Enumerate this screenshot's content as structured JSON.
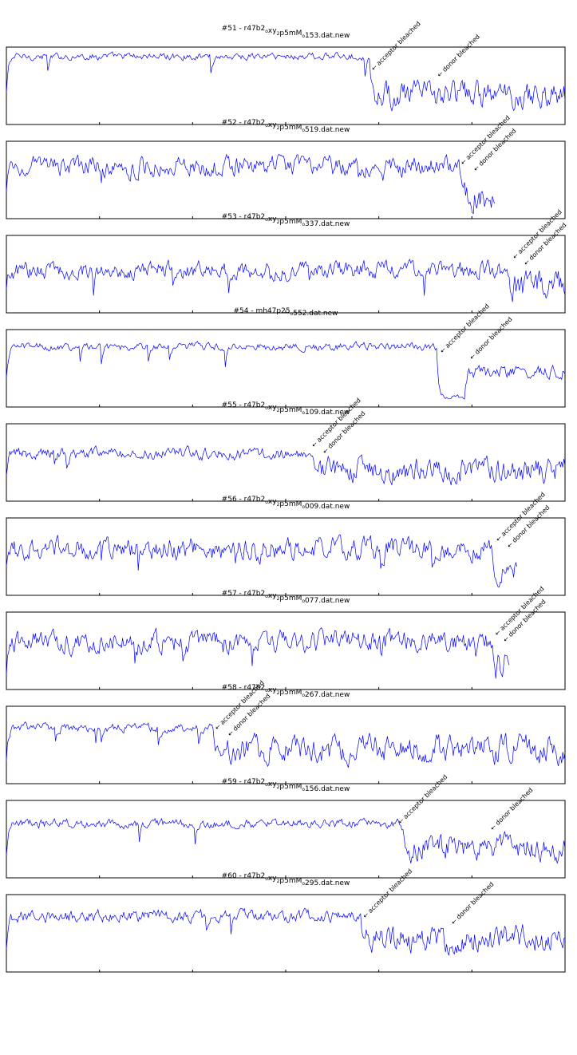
{
  "chart_data": [
    {
      "type": "line",
      "title": "#51 - r47b2_o_xy_2_p5mM_o_153.dat.new",
      "title_parts": [
        [
          "#51 - r47b2",
          ""
        ],
        [
          "o",
          "sub"
        ],
        [
          "xy",
          ""
        ],
        [
          "2",
          "sub"
        ],
        [
          "p5mM",
          ""
        ],
        [
          "o",
          "sub"
        ],
        [
          "153.dat.new",
          ""
        ]
      ],
      "length": 1000,
      "segments": [
        {
          "x_end": 650,
          "mean": 0.88,
          "noise": 0.08,
          "dips": 9
        },
        {
          "x_end": 1000,
          "mean": 0.38,
          "noise": 0.3,
          "dips": 0
        }
      ],
      "annotations": [
        {
          "text": "← acceptor bleached",
          "x": 652
        },
        {
          "text": "← donor bleached",
          "x": 770
        }
      ],
      "color": "#0000ff"
    },
    {
      "type": "line",
      "title": "#52 - r47b2_o_xy_2_p5mM_o_519.dat.new",
      "title_parts": [
        [
          "#52 - r47b2",
          ""
        ],
        [
          "o",
          "sub"
        ],
        [
          "xy",
          ""
        ],
        [
          "2",
          "sub"
        ],
        [
          "p5mM",
          ""
        ],
        [
          "o",
          "sub"
        ],
        [
          "519.dat.new",
          ""
        ]
      ],
      "length": 1000,
      "segments": [
        {
          "x_end": 810,
          "mean": 0.68,
          "noise": 0.22,
          "dips": 6
        },
        {
          "x_end": 875,
          "mean": 0.32,
          "noise": 0.35,
          "dips": 0
        }
      ],
      "annotations": [
        {
          "text": "← acceptor bleached",
          "x": 812
        },
        {
          "text": "← donor bleached",
          "x": 835
        }
      ],
      "color": "#0000ff"
    },
    {
      "type": "line",
      "title": "#53 - r47b2_o_xy_2_p5mM_o_337.dat.new",
      "title_parts": [
        [
          "#53 - r47b2",
          ""
        ],
        [
          "o",
          "sub"
        ],
        [
          "xy",
          ""
        ],
        [
          "2",
          "sub"
        ],
        [
          "p5mM",
          ""
        ],
        [
          "o",
          "sub"
        ],
        [
          "337.dat.new",
          ""
        ]
      ],
      "length": 1000,
      "segments": [
        {
          "x_end": 900,
          "mean": 0.55,
          "noise": 0.2,
          "dips": 8
        },
        {
          "x_end": 1000,
          "mean": 0.35,
          "noise": 0.35,
          "dips": 0
        }
      ],
      "annotations": [
        {
          "text": "← acceptor bleached",
          "x": 905
        },
        {
          "text": "← donor bleached",
          "x": 925
        }
      ],
      "color": "#0000ff"
    },
    {
      "type": "line",
      "title": "#54 - mh47_p25_o_552.dat.new",
      "title_parts": [
        [
          "#54 - mh47",
          ""
        ],
        [
          "p25",
          ""
        ],
        [
          "o",
          "sub"
        ],
        [
          "552.dat.new",
          ""
        ]
      ],
      "length": 1000,
      "segments": [
        {
          "x_end": 770,
          "mean": 0.78,
          "noise": 0.09,
          "dips": 4
        },
        {
          "x_end": 820,
          "mean": 0.12,
          "noise": 0.05,
          "dips": 0
        },
        {
          "x_end": 1000,
          "mean": 0.45,
          "noise": 0.15,
          "dips": 0
        }
      ],
      "annotations": [
        {
          "text": "← acceptor bleached",
          "x": 775
        },
        {
          "text": "← donor bleached",
          "x": 828
        }
      ],
      "color": "#0000ff"
    },
    {
      "type": "line",
      "title": "#55 - r47b2_o_xy_2_p5mM_o_109.dat.new",
      "title_parts": [
        [
          "#55 - r47b2",
          ""
        ],
        [
          "o",
          "sub"
        ],
        [
          "xy",
          ""
        ],
        [
          "2",
          "sub"
        ],
        [
          "p5mM",
          ""
        ],
        [
          "o",
          "sub"
        ],
        [
          "109.dat.new",
          ""
        ]
      ],
      "length": 1000,
      "segments": [
        {
          "x_end": 545,
          "mean": 0.62,
          "noise": 0.14,
          "dips": 3
        },
        {
          "x_end": 1000,
          "mean": 0.4,
          "noise": 0.28,
          "dips": 0
        }
      ],
      "annotations": [
        {
          "text": "← acceptor bleached",
          "x": 545
        },
        {
          "text": "← donor bleached",
          "x": 565
        }
      ],
      "color": "#0000ff"
    },
    {
      "type": "line",
      "title": "#56 - r47b2_o_xy_2_p5mM_o_009.dat.new",
      "title_parts": [
        [
          "#56 - r47b2",
          ""
        ],
        [
          "o",
          "sub"
        ],
        [
          "xy",
          ""
        ],
        [
          "2",
          "sub"
        ],
        [
          "p5mM",
          ""
        ],
        [
          "o",
          "sub"
        ],
        [
          "009.dat.new",
          ""
        ]
      ],
      "length": 1000,
      "segments": [
        {
          "x_end": 870,
          "mean": 0.6,
          "noise": 0.25,
          "dips": 5
        },
        {
          "x_end": 915,
          "mean": 0.28,
          "noise": 0.3,
          "dips": 0
        }
      ],
      "annotations": [
        {
          "text": "← acceptor bleached",
          "x": 875
        },
        {
          "text": "← donor bleached",
          "x": 895
        }
      ],
      "color": "#0000ff"
    },
    {
      "type": "line",
      "title": "#57 - r47b2_o_xy_2_p5mM_o_077.dat.new",
      "title_parts": [
        [
          "#57 - r47b2",
          ""
        ],
        [
          "o",
          "sub"
        ],
        [
          "xy",
          ""
        ],
        [
          "2",
          "sub"
        ],
        [
          "p5mM",
          ""
        ],
        [
          "o",
          "sub"
        ],
        [
          "077.dat.new",
          ""
        ]
      ],
      "length": 1000,
      "segments": [
        {
          "x_end": 870,
          "mean": 0.62,
          "noise": 0.24,
          "dips": 6
        },
        {
          "x_end": 900,
          "mean": 0.28,
          "noise": 0.35,
          "dips": 0
        }
      ],
      "annotations": [
        {
          "text": "← acceptor bleached",
          "x": 873
        },
        {
          "text": "← donor bleached",
          "x": 888
        }
      ],
      "color": "#0000ff"
    },
    {
      "type": "line",
      "title": "#58 - r47b2_o_xy_2_p5mM_o_267.dat.new",
      "title_parts": [
        [
          "#58 - r47b2",
          ""
        ],
        [
          "o",
          "sub"
        ],
        [
          "xy",
          ""
        ],
        [
          "2",
          "sub"
        ],
        [
          "p5mM",
          ""
        ],
        [
          "o",
          "sub"
        ],
        [
          "267.dat.new",
          ""
        ]
      ],
      "length": 1000,
      "segments": [
        {
          "x_end": 370,
          "mean": 0.72,
          "noise": 0.1,
          "dips": 3
        },
        {
          "x_end": 1000,
          "mean": 0.45,
          "noise": 0.3,
          "dips": 0
        }
      ],
      "annotations": [
        {
          "text": "← acceptor bleached",
          "x": 372
        },
        {
          "text": "← donor bleached",
          "x": 395
        }
      ],
      "color": "#0000ff"
    },
    {
      "type": "line",
      "title": "#59 - r47b2_o_xy_2_p5mM_o_156.dat.new",
      "title_parts": [
        [
          "#59 - r47b2",
          ""
        ],
        [
          "o",
          "sub"
        ],
        [
          "xy",
          ""
        ],
        [
          "2",
          "sub"
        ],
        [
          "p5mM",
          ""
        ],
        [
          "o",
          "sub"
        ],
        [
          "156.dat.new",
          ""
        ]
      ],
      "length": 1000,
      "segments": [
        {
          "x_end": 700,
          "mean": 0.7,
          "noise": 0.1,
          "dips": 4
        },
        {
          "x_end": 1000,
          "mean": 0.4,
          "noise": 0.3,
          "dips": 0
        }
      ],
      "annotations": [
        {
          "text": "← acceptor bleached",
          "x": 700
        },
        {
          "text": "← donor bleached",
          "x": 865
        }
      ],
      "color": "#0000ff"
    },
    {
      "type": "line",
      "title": "#60 - r47b2_o_xy_2_p5mM_o_295.dat.new",
      "title_parts": [
        [
          "#60 - r47b2",
          ""
        ],
        [
          "o",
          "sub"
        ],
        [
          "xy",
          ""
        ],
        [
          "2",
          "sub"
        ],
        [
          "p5mM",
          ""
        ],
        [
          "o",
          "sub"
        ],
        [
          "295.dat.new",
          ""
        ]
      ],
      "length": 1000,
      "segments": [
        {
          "x_end": 635,
          "mean": 0.72,
          "noise": 0.14,
          "dips": 4
        },
        {
          "x_end": 1000,
          "mean": 0.42,
          "noise": 0.3,
          "dips": 0
        }
      ],
      "annotations": [
        {
          "text": "← acceptor bleached",
          "x": 637
        },
        {
          "text": "← donor bleached",
          "x": 795
        }
      ],
      "color": "#0000ff"
    }
  ]
}
